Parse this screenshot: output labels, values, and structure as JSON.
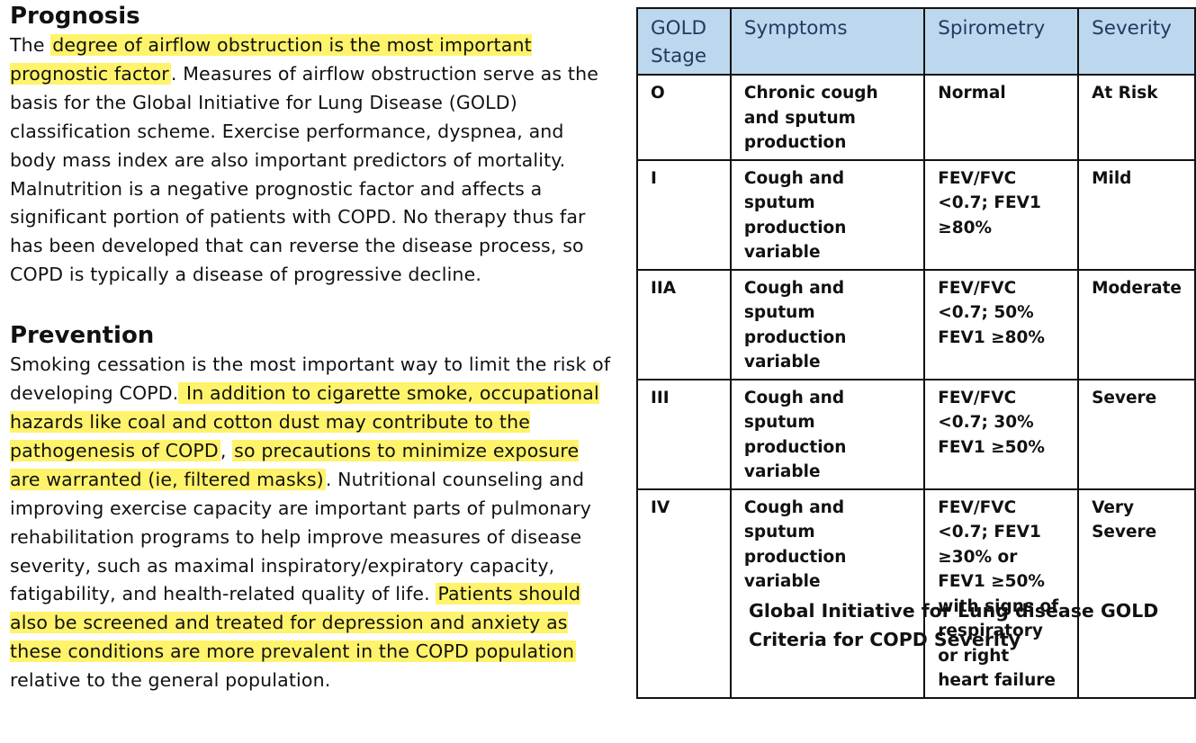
{
  "prognosis": {
    "heading": "Prognosis",
    "parts": [
      {
        "text": "The ",
        "hl": false
      },
      {
        "text": "degree of airflow obstruction is the most important prognostic factor",
        "hl": true
      },
      {
        "text": ". Measures of airflow obstruction serve as the basis for the Global Initiative for Lung Disease (GOLD) classification scheme. Exercise performance, dyspnea, and body mass index are also important predictors of mortality. Malnutrition is a negative prognostic factor and affects a significant portion of patients with COPD. No therapy thus far has been developed that can reverse the disease process, so COPD is typically a disease of progressive decline.",
        "hl": false
      }
    ]
  },
  "prevention": {
    "heading": "Prevention",
    "parts": [
      {
        "text": "Smoking cessation is the most important way to limit the risk of developing COPD.",
        "hl": false
      },
      {
        "text": " In addition to cigarette smoke, occupational hazards like coal and cotton dust may contribute to the pathogenesis of COPD",
        "hl": true
      },
      {
        "text": ", ",
        "hl": false
      },
      {
        "text": "so precautions to minimize exposure are warranted (ie, filtered masks)",
        "hl": true
      },
      {
        "text": ". Nutritional counseling and improving exercise capacity are important parts of pulmonary rehabilitation programs to help improve measures of disease severity, such as maximal inspiratory/expiratory capacity, fatigability, and health-related quality of life. ",
        "hl": false
      },
      {
        "text": "Patients should also be screened and treated for depression and anxiety as these conditions are more prevalent in the COPD population",
        "hl": true
      },
      {
        "text": " relative to the general population.",
        "hl": false
      }
    ]
  },
  "table": {
    "headers": [
      "GOLD Stage",
      "Symptoms",
      "Spirometry",
      "Severity"
    ],
    "rows": [
      [
        "O",
        "Chronic cough and sputum production",
        "Normal",
        "At Risk"
      ],
      [
        "I",
        "Cough and sputum production variable",
        "FEV/FVC <0.7; FEV1 ≥80%",
        "Mild"
      ],
      [
        "IIA",
        "Cough and sputum production variable",
        "FEV/FVC <0.7; 50% FEV1 ≥80%",
        "Moderate"
      ],
      [
        "III",
        "Cough and sputum production variable",
        "FEV/FVC <0.7; 30% FEV1 ≥50%",
        "Severe"
      ],
      [
        "IV",
        "Cough and sputum production variable",
        "FEV/FVC <0.7; FEV1 ≥30% or FEV1 ≥50% with signs of respiratory or right heart failure",
        "Very Severe"
      ]
    ],
    "caption": "Global Initiative for Lung disease GOLD Criteria for COPD Severity"
  },
  "colors": {
    "highlight": "#fff36b",
    "header_bg": "#bdd7ee",
    "header_text": "#1f3a5f"
  }
}
